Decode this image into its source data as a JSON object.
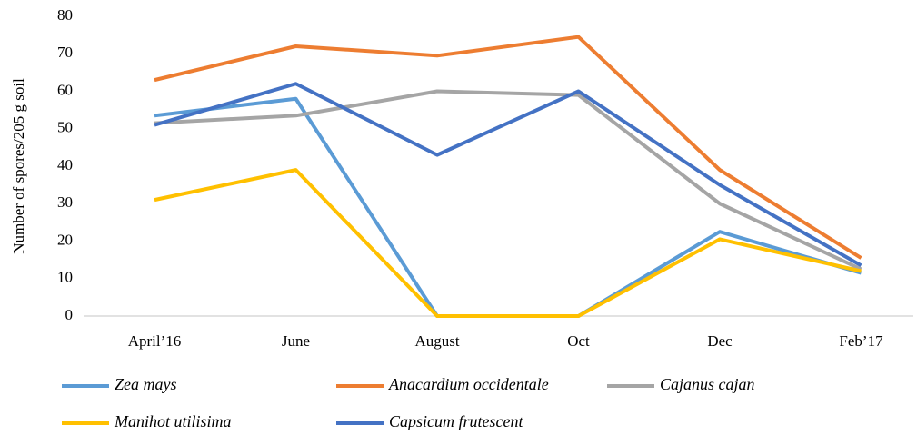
{
  "chart_data": {
    "type": "line",
    "y_label": "Number of spores/205 g soil",
    "categories": [
      "April’16",
      "June",
      "August",
      "Oct",
      "Dec",
      "Feb’17"
    ],
    "series": [
      {
        "name": "Zea mays",
        "color": "#5b9bd5",
        "values": [
          53.5,
          58,
          0,
          0,
          22.5,
          11.5
        ]
      },
      {
        "name": "Anacardium occidentale",
        "color": "#ed7d31",
        "values": [
          63,
          72,
          69.5,
          74.5,
          39,
          15.5
        ]
      },
      {
        "name": "Cajanus cajan",
        "color": "#a5a5a5",
        "values": [
          51.5,
          53.5,
          60,
          59,
          30,
          12.5
        ]
      },
      {
        "name": "Manihot utilisima",
        "color": "#ffc000",
        "values": [
          31,
          39,
          0,
          0,
          20.5,
          12
        ]
      },
      {
        "name": "Capsicum frutescent",
        "color": "#4472c4",
        "values": [
          51,
          62,
          43,
          60,
          35,
          13.5
        ]
      }
    ],
    "ylim": [
      0,
      80
    ],
    "yticks": [
      0,
      10,
      20,
      30,
      40,
      50,
      60,
      70,
      80
    ],
    "grid": false
  }
}
